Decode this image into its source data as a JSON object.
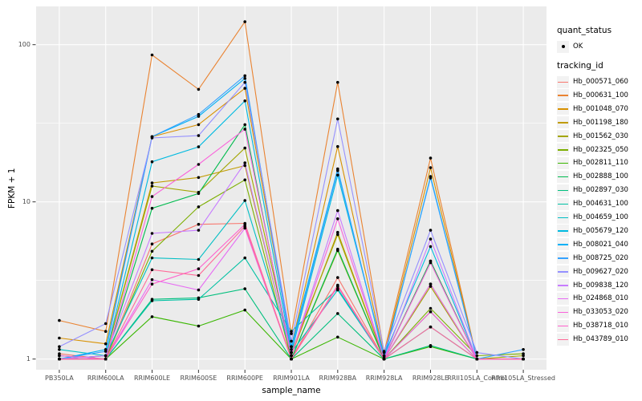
{
  "figure": {
    "background": "#FFFFFF",
    "panel_background": "#EBEBEB",
    "grid_color": "#FFFFFF",
    "tick_color": "#333333",
    "tick_label_color": "#4D4D4D",
    "point_color": "#000000"
  },
  "axes": {
    "x_title": "sample_name",
    "y_title": "FPKM + 1",
    "y_tick_labels": [
      "100",
      "10",
      "1"
    ],
    "y_tick_values": [
      100,
      10,
      1
    ]
  },
  "legend": {
    "quant_status_title": "quant_status",
    "quant_status_item": "OK",
    "tracking_id_title": "tracking_id"
  },
  "chart_data": {
    "type": "line",
    "title": "",
    "xlabel": "sample_name",
    "ylabel": "FPKM + 1",
    "y_scale": "log10",
    "ylim": [
      1,
      175
    ],
    "grid": true,
    "legend_position": "right",
    "marker": "point",
    "categories": [
      "PB350LA",
      "RRIM600LA",
      "RRIM600LE",
      "RRIM600SE",
      "RRIM600PE",
      "RRIM901LA",
      "RRIM928BA",
      "RRIM928LA",
      "RRIM928LE",
      "RRII105LA_Control",
      "RRII105LA_Stressed"
    ],
    "series": [
      {
        "name": "Hb_000571_060",
        "color": "#F8766D",
        "quant_status": "OK",
        "values": [
          1.08,
          1.0,
          5.4,
          7.2,
          7.3,
          1.0,
          3.3,
          1.0,
          4.2,
          1.0,
          1.0
        ]
      },
      {
        "name": "Hb_000631_100",
        "color": "#EA8331",
        "quant_status": "OK",
        "values": [
          1.76,
          1.5,
          86,
          52,
          140,
          1.45,
          57.6,
          1.1,
          19,
          1.0,
          1.0
        ]
      },
      {
        "name": "Hb_001048_070",
        "color": "#D89000",
        "quant_status": "OK",
        "values": [
          1.36,
          1.25,
          26,
          31,
          52.8,
          1.2,
          22.5,
          1.05,
          16.5,
          1.0,
          1.0
        ]
      },
      {
        "name": "Hb_001198_180",
        "color": "#C09B00",
        "quant_status": "OK",
        "values": [
          1.0,
          1.05,
          13.2,
          14.3,
          17,
          1.05,
          6.4,
          1.0,
          3.0,
          1.0,
          1.0
        ]
      },
      {
        "name": "Hb_001562_030",
        "color": "#A3A500",
        "quant_status": "OK",
        "values": [
          1.0,
          1.05,
          12.6,
          11.5,
          22,
          1.1,
          6.2,
          1.0,
          2.9,
          1.0,
          1.05
        ]
      },
      {
        "name": "Hb_002325_050",
        "color": "#7CAE00",
        "quant_status": "OK",
        "values": [
          1.0,
          1.0,
          4.85,
          9.3,
          13.8,
          1.0,
          4.9,
          1.0,
          2.1,
          1.05,
          1.08
        ]
      },
      {
        "name": "Hb_002811_110",
        "color": "#39B600",
        "quant_status": "OK",
        "values": [
          1.0,
          1.0,
          1.86,
          1.62,
          2.05,
          1.0,
          1.38,
          1.0,
          1.2,
          1.0,
          1.0
        ]
      },
      {
        "name": "Hb_002888_100",
        "color": "#00BB4E",
        "quant_status": "OK",
        "values": [
          1.0,
          1.0,
          9.1,
          11.3,
          31,
          1.0,
          5.0,
          1.0,
          4.2,
          1.0,
          1.0
        ]
      },
      {
        "name": "Hb_002897_030",
        "color": "#00BF7D",
        "quant_status": "OK",
        "values": [
          1.0,
          1.0,
          2.4,
          2.45,
          2.8,
          1.0,
          1.95,
          1.0,
          1.22,
          1.0,
          1.0
        ]
      },
      {
        "name": "Hb_004631_100",
        "color": "#00C1A3",
        "quant_status": "OK",
        "values": [
          1.05,
          1.0,
          2.35,
          2.4,
          4.4,
          1.5,
          2.8,
          1.0,
          2.0,
          1.0,
          1.0
        ]
      },
      {
        "name": "Hb_004659_100",
        "color": "#00BFC4",
        "quant_status": "OK",
        "values": [
          1.15,
          1.05,
          4.4,
          4.3,
          10.2,
          1.1,
          2.75,
          1.0,
          1.6,
          1.0,
          1.0
        ]
      },
      {
        "name": "Hb_005679_120",
        "color": "#00BAE0",
        "quant_status": "OK",
        "values": [
          1.0,
          1.05,
          18,
          22.4,
          43.9,
          1.1,
          14.8,
          1.05,
          5.2,
          1.0,
          1.0
        ]
      },
      {
        "name": "Hb_008021_040",
        "color": "#00B0F6",
        "quant_status": "OK",
        "values": [
          1.0,
          1.15,
          26,
          35,
          61,
          1.2,
          16.2,
          1.0,
          14.5,
          1.0,
          1.0
        ]
      },
      {
        "name": "Hb_008725_020",
        "color": "#35A2FF",
        "quant_status": "OK",
        "values": [
          1.0,
          1.12,
          26,
          36,
          63.5,
          1.15,
          15.8,
          1.03,
          14.2,
          1.0,
          1.15
        ]
      },
      {
        "name": "Hb_009627_020",
        "color": "#9590FF",
        "quant_status": "OK",
        "values": [
          1.2,
          1.68,
          25.5,
          26.4,
          57.6,
          1.3,
          33.7,
          1.12,
          6.6,
          1.1,
          1.0
        ]
      },
      {
        "name": "Hb_009838_120",
        "color": "#C77CFF",
        "quant_status": "OK",
        "values": [
          1.0,
          1.05,
          6.3,
          6.6,
          17.7,
          1.05,
          8.8,
          1.0,
          5.8,
          1.0,
          1.0
        ]
      },
      {
        "name": "Hb_024868_010",
        "color": "#E76BF3",
        "quant_status": "OK",
        "values": [
          1.0,
          1.0,
          3.2,
          2.75,
          6.8,
          1.0,
          2.9,
          1.0,
          3.0,
          1.0,
          1.0
        ]
      },
      {
        "name": "Hb_033053_020",
        "color": "#FA62DB",
        "quant_status": "OK",
        "values": [
          1.05,
          1.0,
          10.8,
          17.3,
          29,
          1.05,
          7.8,
          1.0,
          4.1,
          1.0,
          1.0
        ]
      },
      {
        "name": "Hb_038718_010",
        "color": "#FF61CC",
        "quant_status": "OK",
        "values": [
          1.0,
          1.0,
          3.0,
          3.75,
          7.2,
          1.0,
          2.9,
          1.0,
          2.0,
          1.0,
          1.0
        ]
      },
      {
        "name": "Hb_043789_010",
        "color": "#FF6A98",
        "quant_status": "OK",
        "values": [
          1.0,
          1.0,
          3.7,
          3.4,
          7.0,
          1.0,
          2.95,
          1.0,
          1.6,
          1.0,
          1.0
        ]
      }
    ]
  }
}
